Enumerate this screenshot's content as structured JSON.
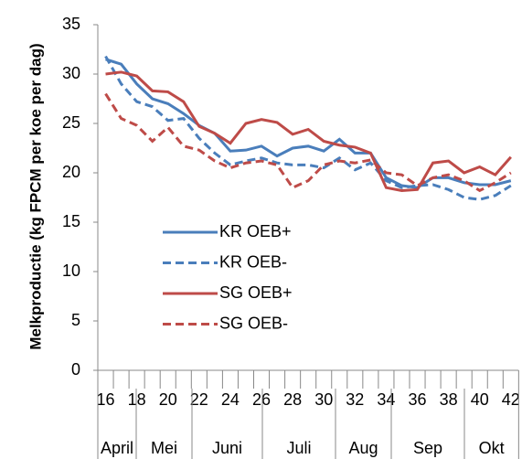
{
  "chart_data": {
    "type": "line",
    "y_label": "Melkproductie (kg FPCM per koe per dag)",
    "categories": [
      "16",
      null,
      "18",
      null,
      "20",
      null,
      "22",
      null,
      "24",
      null,
      "26",
      null,
      "28",
      null,
      "30",
      null,
      "32",
      null,
      "34",
      null,
      "36",
      null,
      "38",
      null,
      "40",
      null,
      "42"
    ],
    "month_labels": [
      "April",
      "Mei",
      "Juni",
      "Juli",
      "Aug",
      "Sep",
      "Okt"
    ],
    "ylim": [
      0,
      35
    ],
    "yticks": [
      0,
      5,
      10,
      15,
      20,
      25,
      30,
      35
    ],
    "grid": false,
    "series": [
      {
        "name": "KR OEB+",
        "color": "#4a7ebb",
        "style": "solid",
        "values": [
          31.5,
          31,
          29,
          27.5,
          27,
          26,
          24.8,
          24,
          22.2,
          22.3,
          22.7,
          21.7,
          22.5,
          22.7,
          22.2,
          23.4,
          22,
          22,
          19.5,
          18.7,
          18.5,
          19.5,
          19.5,
          19,
          18.8,
          18.8,
          19.2
        ]
      },
      {
        "name": "KR OEB-",
        "color": "#4a7ebb",
        "style": "dashed",
        "values": [
          31.8,
          29,
          27.2,
          26.7,
          25.3,
          25.5,
          23.5,
          22,
          20.8,
          21.2,
          21.5,
          21,
          20.8,
          20.8,
          20.5,
          21.5,
          20.3,
          21,
          19.2,
          18.5,
          18.7,
          18.8,
          18.3,
          17.5,
          17.3,
          17.7,
          18.7
        ]
      },
      {
        "name": "SG OEB+",
        "color": "#be4b48",
        "style": "solid",
        "values": [
          30,
          30.2,
          29.8,
          28.3,
          28.2,
          27.2,
          24.7,
          24,
          23,
          25,
          25.4,
          25.1,
          23.9,
          24.4,
          23.2,
          22.8,
          22.6,
          22,
          18.5,
          18.2,
          18.3,
          21,
          21.2,
          20,
          20.6,
          19.8,
          21.6
        ]
      },
      {
        "name": "SG OEB-",
        "color": "#be4b48",
        "style": "dashed",
        "values": [
          28,
          25.5,
          24.8,
          23.2,
          24.6,
          22.7,
          22.3,
          21.2,
          20.5,
          21,
          21.2,
          20.8,
          18.5,
          19.2,
          20.8,
          21.2,
          21,
          21.3,
          20,
          19.8,
          18.7,
          19.5,
          19.8,
          19.2,
          18.2,
          19,
          20
        ]
      }
    ]
  }
}
